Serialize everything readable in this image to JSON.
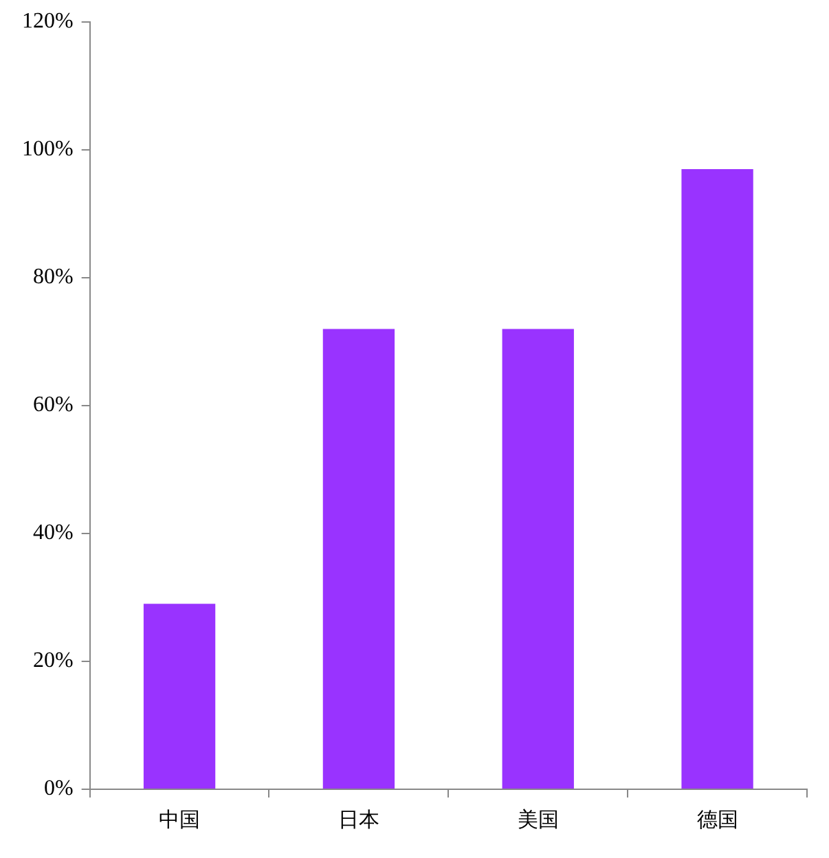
{
  "chart_data": {
    "type": "bar",
    "categories": [
      "中国",
      "日本",
      "美国",
      "德国"
    ],
    "values": [
      29,
      72,
      72,
      97
    ],
    "color": "#9933ff",
    "ylim": [
      0,
      120
    ],
    "yticks": [
      {
        "value": 0,
        "label": "0%"
      },
      {
        "value": 20,
        "label": "20%"
      },
      {
        "value": 40,
        "label": "40%"
      },
      {
        "value": 60,
        "label": "60%"
      },
      {
        "value": 80,
        "label": "80%"
      },
      {
        "value": 100,
        "label": "100%"
      },
      {
        "value": 120,
        "label": "120%"
      }
    ],
    "grid": false,
    "legend": false
  }
}
